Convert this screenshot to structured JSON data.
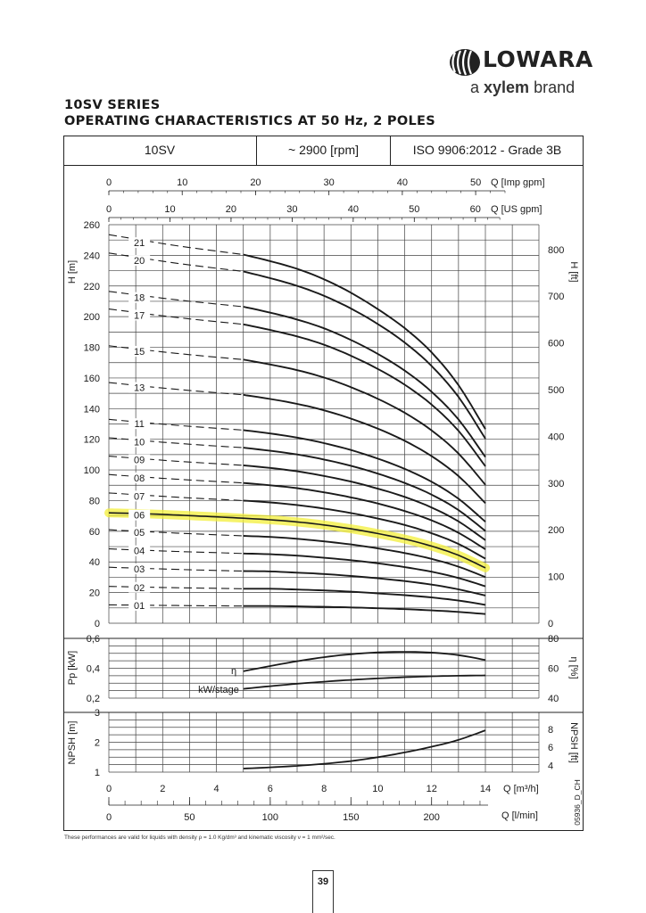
{
  "brand": {
    "name": "LOWARA",
    "tagline_prefix": "a ",
    "tagline_brand": "xylem",
    "tagline_suffix": " brand"
  },
  "titles": {
    "line1": "10SV SERIES",
    "line2": "OPERATING CHARACTERISTICS AT 50 Hz, 2 POLES"
  },
  "header": {
    "model": "10SV",
    "speed": "~ 2900 [rpm]",
    "standard": "ISO 9906:2012 - Grade 3B"
  },
  "footnote": "These performances are valid for liquids with density ρ = 1.0 Kg/dm³ and kinematic viscosity ν = 1 mm²/sec.",
  "page_number": "39",
  "side_code": "05936_D_CH",
  "colors": {
    "highlight": "#f3ef3a",
    "curve": "#1a1a1a",
    "grid": "#444444"
  },
  "chart_data": [
    {
      "type": "line",
      "name": "head",
      "x_unit": "Q [m³/h]",
      "ylabel": "H [m]",
      "ylabel_right": "H [ft]",
      "ylim": [
        0,
        260
      ],
      "yticks": [
        0,
        20,
        40,
        60,
        80,
        100,
        120,
        140,
        160,
        180,
        200,
        220,
        240,
        260
      ],
      "yticks_right": [
        0,
        100,
        200,
        300,
        400,
        500,
        600,
        700,
        800
      ],
      "top_axes": [
        {
          "label": "Q [Imp gpm]",
          "ticks": [
            0,
            10,
            20,
            30,
            40,
            50
          ]
        },
        {
          "label": "Q [US gpm]",
          "ticks": [
            0,
            10,
            20,
            30,
            40,
            50,
            60
          ]
        }
      ],
      "highlighted_stage": "06",
      "series": [
        {
          "name": "21",
          "dashed": [
            [
              0,
              253.5
            ],
            [
              5,
              240.5
            ]
          ],
          "x": [
            5,
            6,
            7,
            8,
            9,
            10,
            11,
            12,
            13,
            14
          ],
          "y": [
            240.5,
            236.2,
            231.2,
            224.4,
            215.6,
            204.9,
            192.5,
            176.7,
            155.3,
            126.6
          ]
        },
        {
          "name": "20",
          "dashed": [
            [
              0,
              241.5
            ],
            [
              5,
              229.5
            ]
          ],
          "x": [
            5,
            6,
            7,
            8,
            9,
            10,
            11,
            12,
            13,
            14
          ],
          "y": [
            229.5,
            225.1,
            220.1,
            213.6,
            205.3,
            195.2,
            183.1,
            167.8,
            147.6,
            120.4
          ]
        },
        {
          "name": "18",
          "dashed": [
            [
              0,
              216.5
            ],
            [
              5,
              206.5
            ]
          ],
          "x": [
            5,
            6,
            7,
            8,
            9,
            10,
            11,
            12,
            13,
            14
          ],
          "y": [
            206.5,
            202.6,
            198.1,
            192.4,
            184.8,
            175.7,
            164.8,
            151.0,
            132.9,
            108.4
          ]
        },
        {
          "name": "17",
          "dashed": [
            [
              0,
              205
            ],
            [
              5,
              195
            ]
          ],
          "x": [
            5,
            6,
            7,
            8,
            9,
            10,
            11,
            12,
            13,
            14
          ],
          "y": [
            195.0,
            191.3,
            187.1,
            181.7,
            174.5,
            165.9,
            155.6,
            142.6,
            125.5,
            102.4
          ]
        },
        {
          "name": "15",
          "dashed": [
            [
              0,
              181
            ],
            [
              5,
              172
            ]
          ],
          "x": [
            5,
            6,
            7,
            8,
            9,
            10,
            11,
            12,
            13,
            14
          ],
          "y": [
            172.0,
            168.8,
            165.1,
            160.3,
            154.0,
            146.4,
            137.3,
            125.8,
            110.7,
            90.3
          ]
        },
        {
          "name": "13",
          "dashed": [
            [
              0,
              157
            ],
            [
              5,
              149
            ]
          ],
          "x": [
            5,
            6,
            7,
            8,
            9,
            10,
            11,
            12,
            13,
            14
          ],
          "y": [
            149.0,
            146.3,
            143.1,
            138.9,
            133.5,
            126.9,
            119.0,
            109.0,
            96.0,
            78.3
          ]
        },
        {
          "name": "11",
          "dashed": [
            [
              0,
              133
            ],
            [
              5,
              126
            ]
          ],
          "x": [
            5,
            6,
            7,
            8,
            9,
            10,
            11,
            12,
            13,
            14
          ],
          "y": [
            126.0,
            123.8,
            121.1,
            117.5,
            113.0,
            107.4,
            100.7,
            92.3,
            81.2,
            66.2
          ]
        },
        {
          "name": "10",
          "dashed": [
            [
              0,
              121
            ],
            [
              5,
              114.5
            ]
          ],
          "x": [
            5,
            6,
            7,
            8,
            9,
            10,
            11,
            12,
            13,
            14
          ],
          "y": [
            114.5,
            112.5,
            110.1,
            106.8,
            102.7,
            97.6,
            91.5,
            83.9,
            73.8,
            60.2
          ]
        },
        {
          "name": "09",
          "dashed": [
            [
              0,
              109
            ],
            [
              5,
              103
            ]
          ],
          "x": [
            5,
            6,
            7,
            8,
            9,
            10,
            11,
            12,
            13,
            14
          ],
          "y": [
            103.0,
            101.3,
            99.1,
            96.1,
            92.4,
            87.8,
            82.4,
            75.5,
            66.4,
            54.2
          ]
        },
        {
          "name": "08",
          "dashed": [
            [
              0,
              97
            ],
            [
              5,
              91.5
            ]
          ],
          "x": [
            5,
            6,
            7,
            8,
            9,
            10,
            11,
            12,
            13,
            14
          ],
          "y": [
            91.5,
            90.0,
            88.1,
            85.4,
            82.1,
            78.1,
            73.2,
            67.1,
            59.0,
            48.2
          ]
        },
        {
          "name": "07",
          "dashed": [
            [
              0,
              85
            ],
            [
              5,
              80
            ]
          ],
          "x": [
            5,
            6,
            7,
            8,
            9,
            10,
            11,
            12,
            13,
            14
          ],
          "y": [
            80.0,
            78.8,
            77.1,
            74.8,
            71.9,
            68.3,
            64.1,
            58.7,
            51.7,
            42.1
          ]
        },
        {
          "name": "06",
          "dashed": [
            [
              0,
              72
            ],
            [
              5,
              68.5
            ]
          ],
          "x": [
            0,
            1,
            2,
            3,
            4,
            5,
            6,
            7,
            8,
            9,
            10,
            11,
            12,
            13,
            14
          ],
          "y": [
            72.0,
            71.6,
            71.0,
            70.2,
            69.4,
            68.5,
            67.5,
            66.1,
            64.1,
            61.6,
            58.5,
            54.9,
            50.3,
            44.3,
            36.1
          ]
        },
        {
          "name": "05",
          "dashed": [
            [
              0,
              61
            ],
            [
              5,
              57
            ]
          ],
          "x": [
            5,
            6,
            7,
            8,
            9,
            10,
            11,
            12,
            13,
            14
          ],
          "y": [
            57.0,
            56.3,
            55.1,
            53.4,
            51.4,
            48.8,
            45.8,
            42.0,
            36.9,
            30.1
          ]
        },
        {
          "name": "04",
          "dashed": [
            [
              0,
              48.5
            ],
            [
              5,
              45.5
            ]
          ],
          "x": [
            5,
            6,
            7,
            8,
            9,
            10,
            11,
            12,
            13,
            14
          ],
          "y": [
            45.5,
            45.0,
            44.1,
            42.7,
            41.1,
            39.1,
            36.6,
            33.6,
            29.5,
            24.1
          ]
        },
        {
          "name": "03",
          "dashed": [
            [
              0,
              36.5
            ],
            [
              5,
              34
            ]
          ],
          "x": [
            5,
            6,
            7,
            8,
            9,
            10,
            11,
            12,
            13,
            14
          ],
          "y": [
            34.0,
            33.8,
            33.0,
            32.1,
            30.8,
            29.3,
            27.5,
            25.2,
            22.1,
            18.1
          ]
        },
        {
          "name": "02",
          "dashed": [
            [
              0,
              24
            ],
            [
              5,
              22.5
            ]
          ],
          "x": [
            5,
            6,
            7,
            8,
            9,
            10,
            11,
            12,
            13,
            14
          ],
          "y": [
            22.5,
            22.5,
            22.0,
            21.4,
            20.6,
            19.5,
            18.3,
            16.8,
            14.8,
            12.0
          ]
        },
        {
          "name": "01",
          "dashed": [
            [
              0,
              12
            ],
            [
              5,
              11.2
            ]
          ],
          "x": [
            5,
            6,
            7,
            8,
            9,
            10,
            11,
            12,
            13,
            14
          ],
          "y": [
            11.2,
            11.2,
            11.0,
            10.7,
            10.3,
            9.8,
            9.2,
            8.4,
            7.4,
            6.0
          ]
        }
      ]
    },
    {
      "type": "line",
      "name": "power-efficiency",
      "ylabel": "Pp [kW]",
      "ylabel_right": "η [%]",
      "ylim": [
        0.2,
        0.6
      ],
      "yticks": [
        "0,2",
        "0,4",
        "0,6"
      ],
      "yticks_right": [
        40,
        60,
        80
      ],
      "series": [
        {
          "name": "η",
          "axis": "right",
          "x": [
            5,
            6,
            7,
            8,
            9,
            10,
            11,
            12,
            13,
            14
          ],
          "y": [
            58,
            61.5,
            64.7,
            67.4,
            69.4,
            70.6,
            71,
            70.5,
            68.8,
            65.5
          ]
        },
        {
          "name": "kW/stage",
          "axis": "left",
          "x": [
            5,
            6,
            7,
            8,
            9,
            10,
            11,
            12,
            13,
            14
          ],
          "y": [
            0.262,
            0.28,
            0.296,
            0.31,
            0.322,
            0.332,
            0.34,
            0.346,
            0.35,
            0.352
          ]
        }
      ]
    },
    {
      "type": "line",
      "name": "npsh",
      "ylabel": "NPSH [m]",
      "ylabel_right": "NPSH [ft]",
      "ylim": [
        1,
        3
      ],
      "yticks": [
        1,
        2,
        3
      ],
      "yticks_right": [
        4,
        6,
        8
      ],
      "xlabel": "Q [m³/h]",
      "xticks": [
        0,
        2,
        4,
        6,
        8,
        10,
        12,
        14
      ],
      "bottom_axis": {
        "label": "Q [l/min]",
        "ticks": [
          0,
          50,
          100,
          150,
          200
        ]
      },
      "series": [
        {
          "name": "NPSH",
          "x": [
            5,
            6,
            7,
            8,
            9,
            10,
            11,
            12,
            13,
            14
          ],
          "y": [
            1.12,
            1.16,
            1.21,
            1.28,
            1.37,
            1.5,
            1.66,
            1.85,
            2.08,
            2.4
          ]
        }
      ]
    }
  ]
}
